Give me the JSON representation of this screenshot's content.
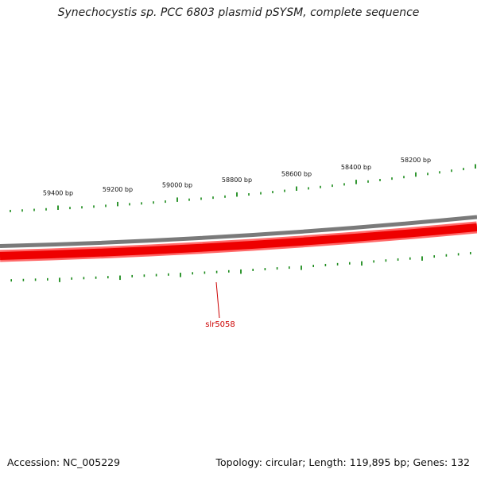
{
  "title": "Synechocystis sp. PCC 6803 plasmid pSYSM, complete sequence",
  "footer": {
    "accession": "Accession: NC_005229",
    "stats": "Topology: circular; Length: 119,895 bp; Genes: 132"
  },
  "ruler_labels": [
    "59400 bp",
    "59200 bp",
    "59000 bp",
    "58800 bp",
    "58600 bp",
    "58400 bp",
    "58200 bp"
  ],
  "gene_label": "slr5058",
  "colors": {
    "backbone": "#7a7a7a",
    "gene_track": "#ee0000",
    "gene_track_edge": "#ff6a6a",
    "tick": "#1a8a1a",
    "gene_label": "#cc0000"
  }
}
